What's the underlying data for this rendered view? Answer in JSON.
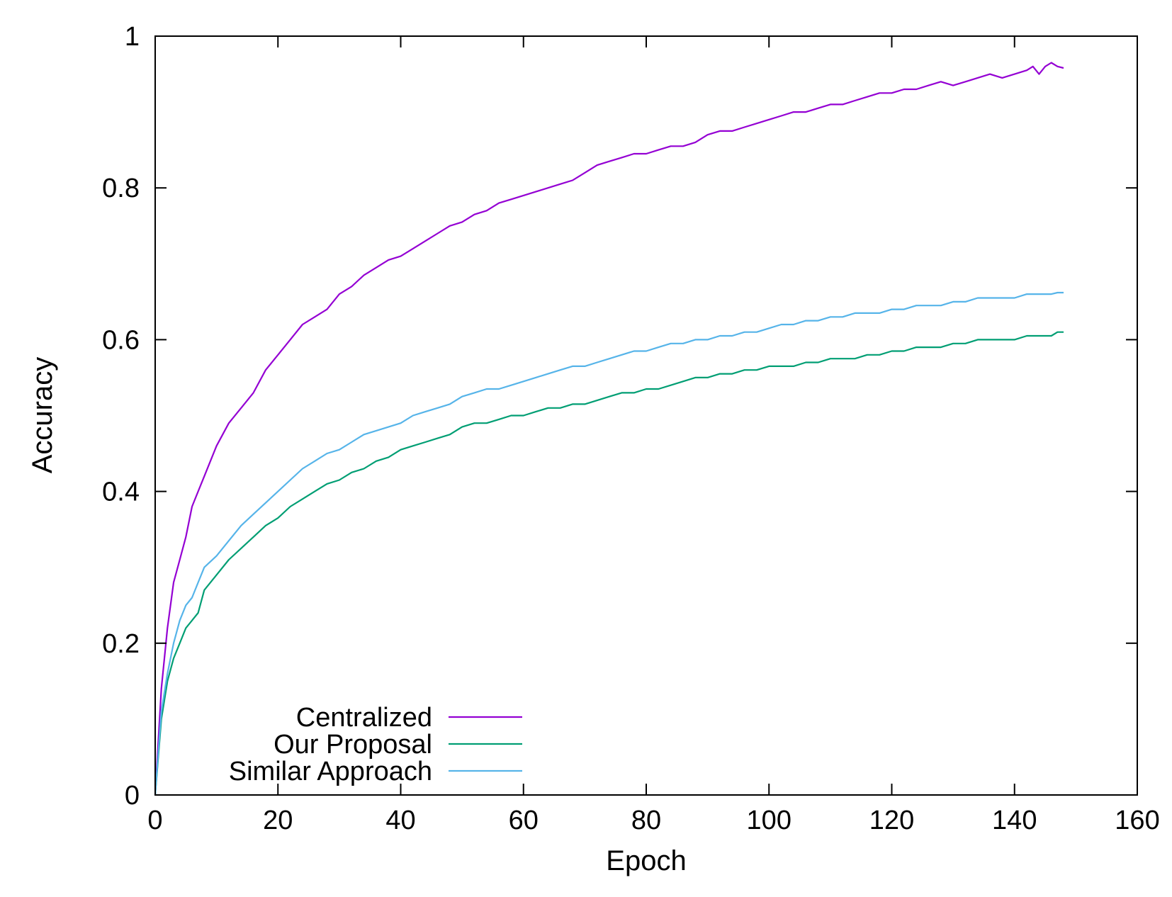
{
  "chart_data": {
    "type": "line",
    "title": "",
    "xlabel": "Epoch",
    "ylabel": "Accuracy",
    "xlim": [
      0,
      160
    ],
    "ylim": [
      0,
      1
    ],
    "xticks": [
      0,
      20,
      40,
      60,
      80,
      100,
      120,
      140,
      160
    ],
    "yticks": [
      0,
      0.2,
      0.4,
      0.6,
      0.8,
      1
    ],
    "grid": false,
    "legend_position": "bottom-left",
    "series": [
      {
        "name": "Centralized",
        "color": "#9400d3",
        "x": [
          0,
          1,
          2,
          3,
          4,
          5,
          6,
          7,
          8,
          10,
          12,
          14,
          16,
          18,
          20,
          22,
          24,
          26,
          28,
          30,
          32,
          34,
          36,
          38,
          40,
          42,
          44,
          46,
          48,
          50,
          52,
          54,
          56,
          58,
          60,
          62,
          64,
          66,
          68,
          70,
          72,
          74,
          76,
          78,
          80,
          82,
          84,
          86,
          88,
          90,
          92,
          94,
          96,
          98,
          100,
          102,
          104,
          106,
          108,
          110,
          112,
          114,
          116,
          118,
          120,
          122,
          124,
          126,
          128,
          130,
          132,
          134,
          136,
          138,
          140,
          142,
          143,
          144,
          145,
          146,
          147,
          148
        ],
        "values": [
          0.0,
          0.14,
          0.22,
          0.28,
          0.31,
          0.34,
          0.38,
          0.4,
          0.42,
          0.46,
          0.49,
          0.51,
          0.53,
          0.56,
          0.58,
          0.6,
          0.62,
          0.63,
          0.64,
          0.66,
          0.67,
          0.685,
          0.695,
          0.705,
          0.71,
          0.72,
          0.73,
          0.74,
          0.75,
          0.755,
          0.765,
          0.77,
          0.78,
          0.785,
          0.79,
          0.795,
          0.8,
          0.805,
          0.81,
          0.82,
          0.83,
          0.835,
          0.84,
          0.845,
          0.845,
          0.85,
          0.855,
          0.855,
          0.86,
          0.87,
          0.875,
          0.875,
          0.88,
          0.885,
          0.89,
          0.895,
          0.9,
          0.9,
          0.905,
          0.91,
          0.91,
          0.915,
          0.92,
          0.925,
          0.925,
          0.93,
          0.93,
          0.935,
          0.94,
          0.935,
          0.94,
          0.945,
          0.95,
          0.945,
          0.95,
          0.955,
          0.96,
          0.95,
          0.96,
          0.965,
          0.96,
          0.958
        ]
      },
      {
        "name": "Our Proposal",
        "color": "#009e73",
        "x": [
          0,
          1,
          2,
          3,
          4,
          5,
          6,
          7,
          8,
          10,
          12,
          14,
          16,
          18,
          20,
          22,
          24,
          26,
          28,
          30,
          32,
          34,
          36,
          38,
          40,
          42,
          44,
          46,
          48,
          50,
          52,
          54,
          56,
          58,
          60,
          62,
          64,
          66,
          68,
          70,
          72,
          74,
          76,
          78,
          80,
          82,
          84,
          86,
          88,
          90,
          92,
          94,
          96,
          98,
          100,
          102,
          104,
          106,
          108,
          110,
          112,
          114,
          116,
          118,
          120,
          122,
          124,
          126,
          128,
          130,
          132,
          134,
          136,
          138,
          140,
          142,
          144,
          146,
          147,
          148
        ],
        "values": [
          0.0,
          0.1,
          0.15,
          0.18,
          0.2,
          0.22,
          0.23,
          0.24,
          0.27,
          0.29,
          0.31,
          0.325,
          0.34,
          0.355,
          0.365,
          0.38,
          0.39,
          0.4,
          0.41,
          0.415,
          0.425,
          0.43,
          0.44,
          0.445,
          0.455,
          0.46,
          0.465,
          0.47,
          0.475,
          0.485,
          0.49,
          0.49,
          0.495,
          0.5,
          0.5,
          0.505,
          0.51,
          0.51,
          0.515,
          0.515,
          0.52,
          0.525,
          0.53,
          0.53,
          0.535,
          0.535,
          0.54,
          0.545,
          0.55,
          0.55,
          0.555,
          0.555,
          0.56,
          0.56,
          0.565,
          0.565,
          0.565,
          0.57,
          0.57,
          0.575,
          0.575,
          0.575,
          0.58,
          0.58,
          0.585,
          0.585,
          0.59,
          0.59,
          0.59,
          0.595,
          0.595,
          0.6,
          0.6,
          0.6,
          0.6,
          0.605,
          0.605,
          0.605,
          0.61,
          0.61
        ]
      },
      {
        "name": "Similar Approach",
        "color": "#56b4e9",
        "x": [
          0,
          1,
          2,
          3,
          4,
          5,
          6,
          7,
          8,
          10,
          12,
          14,
          16,
          18,
          20,
          22,
          24,
          26,
          28,
          30,
          32,
          34,
          36,
          38,
          40,
          42,
          44,
          46,
          48,
          50,
          52,
          54,
          56,
          58,
          60,
          62,
          64,
          66,
          68,
          70,
          72,
          74,
          76,
          78,
          80,
          82,
          84,
          86,
          88,
          90,
          92,
          94,
          96,
          98,
          100,
          102,
          104,
          106,
          108,
          110,
          112,
          114,
          116,
          118,
          120,
          122,
          124,
          126,
          128,
          130,
          132,
          134,
          136,
          138,
          140,
          142,
          144,
          146,
          147,
          148
        ],
        "values": [
          0.0,
          0.11,
          0.16,
          0.2,
          0.23,
          0.25,
          0.26,
          0.28,
          0.3,
          0.315,
          0.335,
          0.355,
          0.37,
          0.385,
          0.4,
          0.415,
          0.43,
          0.44,
          0.45,
          0.455,
          0.465,
          0.475,
          0.48,
          0.485,
          0.49,
          0.5,
          0.505,
          0.51,
          0.515,
          0.525,
          0.53,
          0.535,
          0.535,
          0.54,
          0.545,
          0.55,
          0.555,
          0.56,
          0.565,
          0.565,
          0.57,
          0.575,
          0.58,
          0.585,
          0.585,
          0.59,
          0.595,
          0.595,
          0.6,
          0.6,
          0.605,
          0.605,
          0.61,
          0.61,
          0.615,
          0.62,
          0.62,
          0.625,
          0.625,
          0.63,
          0.63,
          0.635,
          0.635,
          0.635,
          0.64,
          0.64,
          0.645,
          0.645,
          0.645,
          0.65,
          0.65,
          0.655,
          0.655,
          0.655,
          0.655,
          0.66,
          0.66,
          0.66,
          0.662,
          0.662
        ]
      }
    ]
  }
}
